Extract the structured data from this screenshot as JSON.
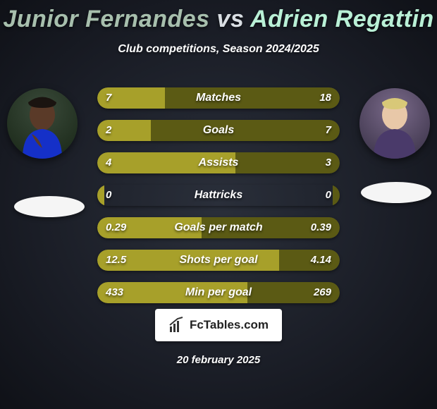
{
  "title": "Junior Fernandes vs Adrien Regattin",
  "subtitle": "Club competitions, Season 2024/2025",
  "date": "20 february 2025",
  "logo_text": "FcTables.com",
  "colors": {
    "player1_bar": "#a7a02a",
    "player2_bar": "#5b5a14",
    "title_p1": "#a7bfad",
    "title_vs": "#d9dee3",
    "title_p2": "#b9f0d6"
  },
  "player1": {
    "name": "Junior Fernandes"
  },
  "player2": {
    "name": "Adrien Regattin"
  },
  "stats": [
    {
      "label": "Matches",
      "p1": "7",
      "p2": "18",
      "p1_pct": 28,
      "p2_pct": 72
    },
    {
      "label": "Goals",
      "p1": "2",
      "p2": "7",
      "p1_pct": 22,
      "p2_pct": 78
    },
    {
      "label": "Assists",
      "p1": "4",
      "p2": "3",
      "p1_pct": 57,
      "p2_pct": 43
    },
    {
      "label": "Hattricks",
      "p1": "0",
      "p2": "0",
      "p1_pct": 3,
      "p2_pct": 3
    },
    {
      "label": "Goals per match",
      "p1": "0.29",
      "p2": "0.39",
      "p1_pct": 43,
      "p2_pct": 57
    },
    {
      "label": "Shots per goal",
      "p1": "12.5",
      "p2": "4.14",
      "p1_pct": 75,
      "p2_pct": 25
    },
    {
      "label": "Min per goal",
      "p1": "433",
      "p2": "269",
      "p1_pct": 62,
      "p2_pct": 38
    }
  ]
}
